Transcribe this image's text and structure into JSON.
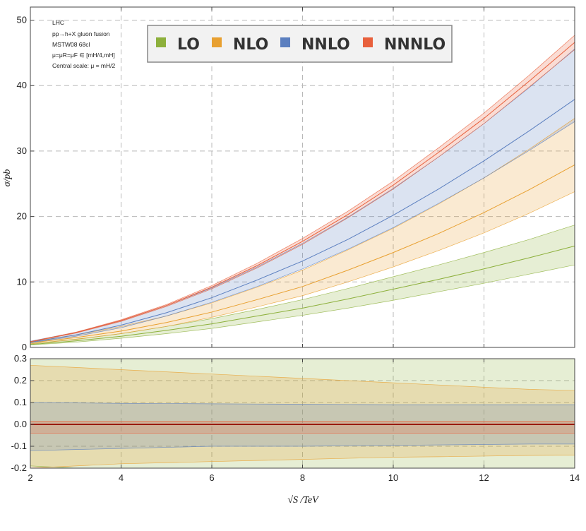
{
  "chart_data": [
    {
      "type": "area",
      "panel": "main",
      "ylabel": "σ/pb",
      "xlim": [
        2,
        14
      ],
      "ylim": [
        0,
        52
      ],
      "xticks": [
        2,
        4,
        6,
        8,
        10,
        12,
        14
      ],
      "yticks": [
        0,
        10,
        20,
        30,
        40,
        50
      ],
      "grid": true,
      "legend_position": "top-center",
      "annotations": [
        "LHC",
        "pp→h+X gluon fusion",
        "MSTW08 68cl",
        "μ=μR=μF ∈ [mH/4,mH]",
        "Central scale: μ = mH/2"
      ],
      "x": [
        2,
        3,
        4,
        5,
        6,
        7,
        8,
        9,
        10,
        11,
        12,
        13,
        14
      ],
      "series": [
        {
          "name": "LO",
          "color": "#8db03c",
          "central": [
            0.45,
            1.0,
            1.7,
            2.6,
            3.6,
            4.8,
            6.0,
            7.4,
            8.9,
            10.4,
            12.0,
            13.7,
            15.5
          ],
          "lower": [
            0.37,
            0.8,
            1.4,
            2.1,
            2.9,
            3.9,
            4.9,
            6.0,
            7.2,
            8.5,
            9.8,
            11.2,
            12.6
          ],
          "upper": [
            0.55,
            1.25,
            2.1,
            3.2,
            4.4,
            5.8,
            7.3,
            9.0,
            10.8,
            12.6,
            14.5,
            16.5,
            18.7
          ]
        },
        {
          "name": "NLO",
          "color": "#e8a030",
          "central": [
            0.7,
            1.5,
            2.5,
            3.8,
            5.4,
            7.3,
            9.3,
            11.8,
            14.5,
            17.4,
            20.6,
            24.1,
            27.9
          ],
          "lower": [
            0.55,
            1.2,
            2.1,
            3.2,
            4.6,
            6.2,
            7.9,
            10.0,
            12.3,
            14.8,
            17.5,
            20.5,
            23.8
          ],
          "upper": [
            0.9,
            1.9,
            3.2,
            4.8,
            6.8,
            9.2,
            11.8,
            14.9,
            18.2,
            21.9,
            25.9,
            30.3,
            35.0
          ]
        },
        {
          "name": "NNLO",
          "color": "#5b7fbf",
          "central": [
            0.8,
            1.9,
            3.4,
            5.3,
            7.6,
            10.3,
            13.2,
            16.5,
            20.2,
            24.2,
            28.5,
            33.1,
            37.9
          ],
          "lower": [
            0.72,
            1.7,
            3.0,
            4.8,
            6.9,
            9.3,
            12.0,
            15.0,
            18.3,
            22.0,
            25.9,
            30.1,
            34.5
          ],
          "upper": [
            0.95,
            2.3,
            4.1,
            6.4,
            9.1,
            12.3,
            15.9,
            19.9,
            24.3,
            29.1,
            34.2,
            39.7,
            45.6
          ]
        },
        {
          "name": "NNNLO",
          "color": "#e8603c",
          "central": [
            0.87,
            2.25,
            4.1,
            6.4,
            9.2,
            12.5,
            16.2,
            20.3,
            24.8,
            29.8,
            35.0,
            40.7,
            46.6
          ],
          "lower": [
            0.84,
            2.18,
            3.98,
            6.25,
            8.95,
            12.15,
            15.75,
            19.8,
            24.2,
            29.1,
            34.2,
            39.8,
            45.5
          ],
          "upper": [
            0.9,
            2.32,
            4.22,
            6.55,
            9.45,
            12.85,
            16.65,
            20.8,
            25.4,
            30.5,
            35.8,
            41.6,
            47.7
          ]
        }
      ]
    },
    {
      "type": "area",
      "panel": "ratio",
      "xlabel": "√S /TeV",
      "xlim": [
        2,
        14
      ],
      "ylim": [
        -0.2,
        0.3
      ],
      "xticks": [
        2,
        4,
        6,
        8,
        10,
        12,
        14
      ],
      "yticks": [
        -0.2,
        -0.1,
        0.0,
        0.1,
        0.2,
        0.3
      ],
      "grid": true,
      "x": [
        2,
        3,
        4,
        5,
        6,
        7,
        8,
        9,
        10,
        11,
        12,
        13,
        14
      ],
      "series": [
        {
          "name": "LO",
          "color": "#8db03c",
          "lower": [
            -0.19,
            -0.2,
            -0.2,
            -0.2,
            -0.2,
            -0.2,
            -0.2,
            -0.2,
            -0.2,
            -0.2,
            -0.2,
            -0.2,
            -0.2
          ],
          "upper": [
            0.3,
            0.3,
            0.3,
            0.3,
            0.3,
            0.3,
            0.3,
            0.3,
            0.3,
            0.3,
            0.3,
            0.3,
            0.3
          ]
        },
        {
          "name": "NLO",
          "color": "#e8a030",
          "lower": [
            -0.2,
            -0.19,
            -0.18,
            -0.175,
            -0.17,
            -0.165,
            -0.16,
            -0.155,
            -0.15,
            -0.148,
            -0.145,
            -0.142,
            -0.14
          ],
          "upper": [
            0.27,
            0.26,
            0.25,
            0.24,
            0.23,
            0.22,
            0.21,
            0.2,
            0.19,
            0.18,
            0.17,
            0.16,
            0.155
          ]
        },
        {
          "name": "NNLO",
          "color": "#5b7fbf",
          "lower": [
            -0.12,
            -0.115,
            -0.11,
            -0.105,
            -0.1,
            -0.1,
            -0.1,
            -0.098,
            -0.096,
            -0.094,
            -0.092,
            -0.09,
            -0.09
          ],
          "upper": [
            0.1,
            0.098,
            0.096,
            0.095,
            0.094,
            0.093,
            0.092,
            0.091,
            0.09,
            0.09,
            0.09,
            0.09,
            0.09
          ]
        },
        {
          "name": "NNNLO",
          "color": "#e8603c",
          "lower": [
            -0.04,
            -0.04,
            -0.04,
            -0.04,
            -0.04,
            -0.04,
            -0.04,
            -0.04,
            -0.04,
            -0.04,
            -0.04,
            -0.04,
            -0.04
          ],
          "upper": [
            0.015,
            0.015,
            0.015,
            0.015,
            0.015,
            0.015,
            0.015,
            0.015,
            0.015,
            0.015,
            0.015,
            0.015,
            0.015
          ]
        }
      ]
    }
  ]
}
